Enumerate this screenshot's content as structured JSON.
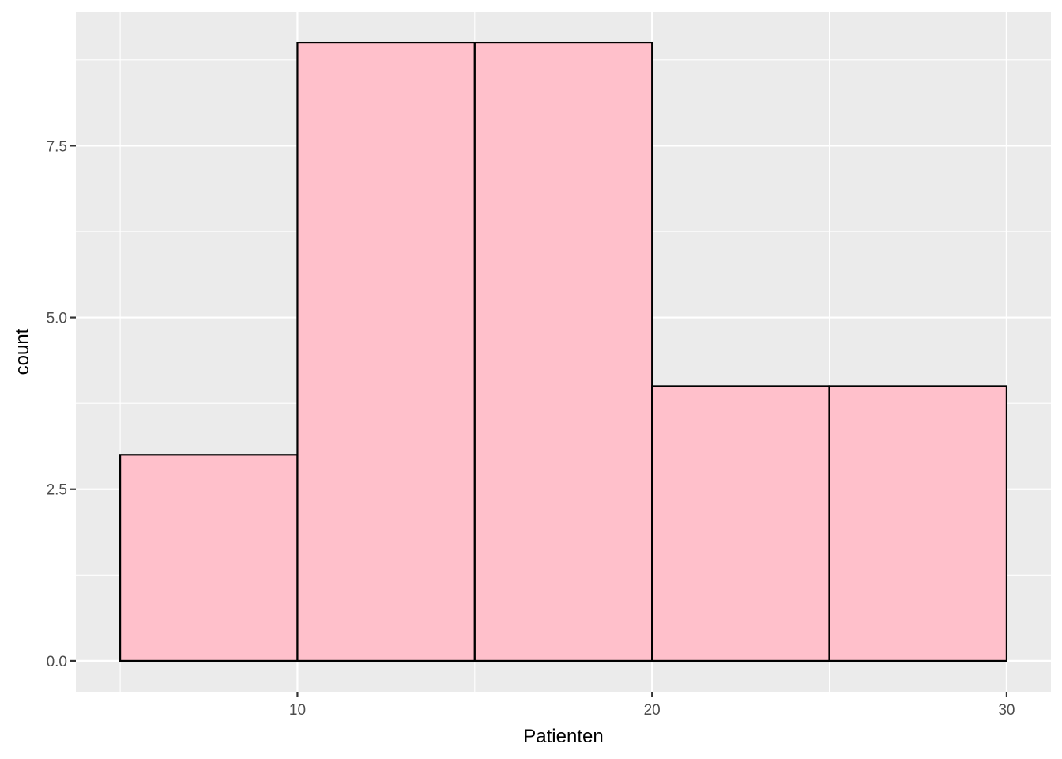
{
  "chart_data": {
    "type": "bar",
    "subtype": "histogram",
    "bins": [
      {
        "from": 5,
        "to": 10,
        "count": 3
      },
      {
        "from": 10,
        "to": 15,
        "count": 9
      },
      {
        "from": 15,
        "to": 20,
        "count": 9
      },
      {
        "from": 20,
        "to": 25,
        "count": 4
      },
      {
        "from": 25,
        "to": 30,
        "count": 4
      }
    ],
    "title": "",
    "xlabel": "Patienten",
    "ylabel": "count",
    "xlim": [
      3.75,
      31.25
    ],
    "ylim": [
      -0.45,
      9.45
    ],
    "x_ticks": [
      10,
      20,
      30
    ],
    "x_tick_labels": [
      "10",
      "20",
      "30"
    ],
    "x_minor_ticks": [
      5,
      15,
      25
    ],
    "y_ticks": [
      0,
      2.5,
      5,
      7.5
    ],
    "y_tick_labels": [
      "0.0",
      "2.5",
      "5.0",
      "7.5"
    ],
    "y_minor_ticks": [
      1.25,
      3.75,
      6.25,
      8.75
    ],
    "grid": true,
    "legend": "none",
    "colors": {
      "bar_fill": "#ffc0cb",
      "bar_outline": "#000000",
      "panel": "#ebebeb",
      "grid": "#ffffff"
    }
  }
}
